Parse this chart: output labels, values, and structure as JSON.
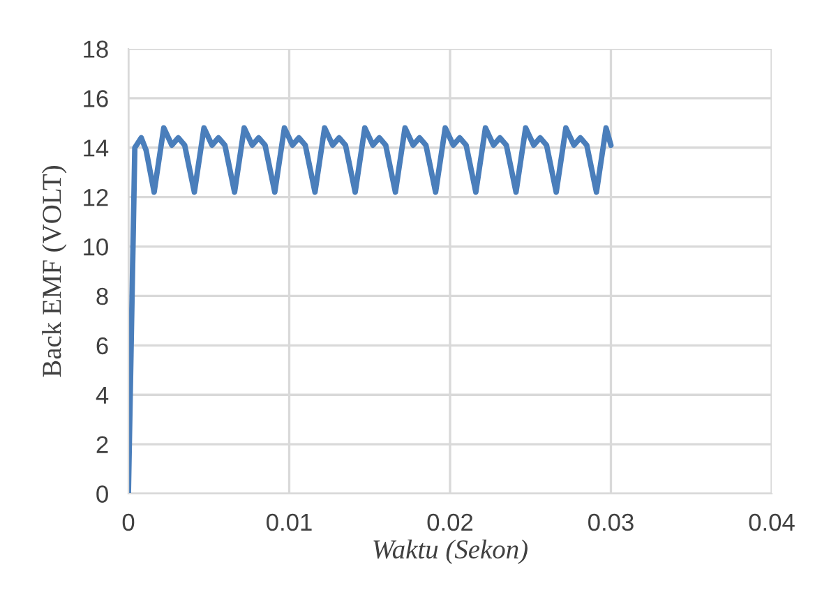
{
  "chart_data": {
    "type": "line",
    "xlabel": "Waktu (Sekon)",
    "ylabel": "Back EMF (VOLT)",
    "xlim": [
      0,
      0.04
    ],
    "xticks": [
      0,
      0.01,
      0.02,
      0.03,
      0.04
    ],
    "ylim": [
      0,
      18
    ],
    "yticks": [
      0,
      2,
      4,
      6,
      8,
      10,
      12,
      14,
      16,
      18
    ],
    "grid": true,
    "line_style": "solid",
    "marker": "none",
    "x": [
      0,
      0.0004,
      0.0008,
      0.0011,
      0.0016,
      0.0022,
      0.0027,
      0.0031,
      0.0035,
      0.0041,
      0.0047,
      0.0052,
      0.0056,
      0.006,
      0.0066,
      0.0072,
      0.0077,
      0.0081,
      0.0085,
      0.0091,
      0.0097,
      0.0102,
      0.0106,
      0.011,
      0.0116,
      0.0122,
      0.0127,
      0.0131,
      0.0135,
      0.0141,
      0.0147,
      0.0152,
      0.0156,
      0.016,
      0.0166,
      0.0172,
      0.0177,
      0.0181,
      0.0185,
      0.0191,
      0.0197,
      0.0202,
      0.0206,
      0.021,
      0.0216,
      0.0222,
      0.0227,
      0.0231,
      0.0235,
      0.0241,
      0.0247,
      0.0252,
      0.0256,
      0.026,
      0.0266,
      0.0272,
      0.0277,
      0.0281,
      0.0285,
      0.0291,
      0.0297,
      0.03
    ],
    "series": [
      {
        "color": "#4a7ebb",
        "values": [
          0,
          14.0,
          14.4,
          13.9,
          12.2,
          14.8,
          14.1,
          14.4,
          14.1,
          12.2,
          14.8,
          14.1,
          14.4,
          14.1,
          12.2,
          14.8,
          14.1,
          14.4,
          14.1,
          12.2,
          14.8,
          14.1,
          14.4,
          14.1,
          12.2,
          14.8,
          14.1,
          14.4,
          14.1,
          12.2,
          14.8,
          14.1,
          14.4,
          14.1,
          12.2,
          14.8,
          14.1,
          14.4,
          14.1,
          12.2,
          14.8,
          14.1,
          14.4,
          14.1,
          12.2,
          14.8,
          14.1,
          14.4,
          14.1,
          12.2,
          14.8,
          14.1,
          14.4,
          14.1,
          12.2,
          14.8,
          14.1,
          14.4,
          14.1,
          12.2,
          14.8,
          14.1
        ]
      }
    ]
  }
}
